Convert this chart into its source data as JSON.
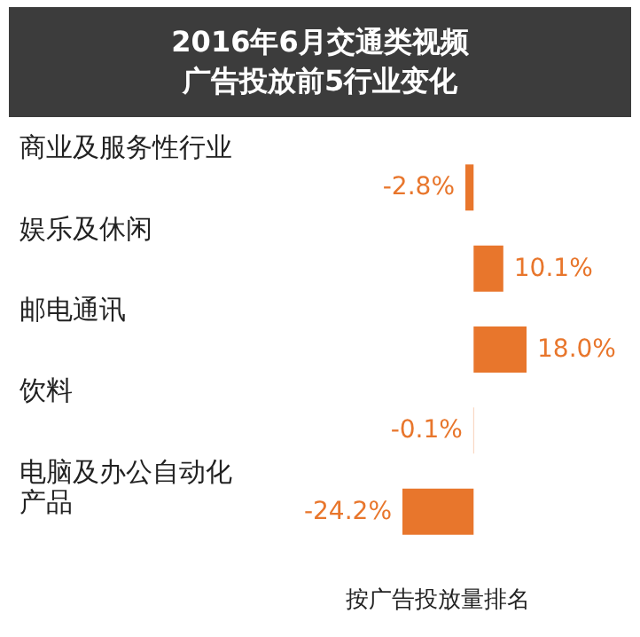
{
  "chart_data": {
    "type": "bar",
    "orientation": "horizontal",
    "title": "2016年6月交通类视频广告投放前5行业变化",
    "categories": [
      "商业及服务性行业",
      "娱乐及休闲",
      "邮电通讯",
      "饮料",
      "电脑及办公自动化产品"
    ],
    "values": [
      -2.8,
      10.1,
      18.0,
      -0.1,
      -24.2
    ],
    "value_labels": [
      "-2.8%",
      "10.1%",
      "18.0%",
      "-0.1%",
      "-24.2%"
    ],
    "color": "#e8762c",
    "annotations": [
      "按广告投放量排名"
    ]
  }
}
